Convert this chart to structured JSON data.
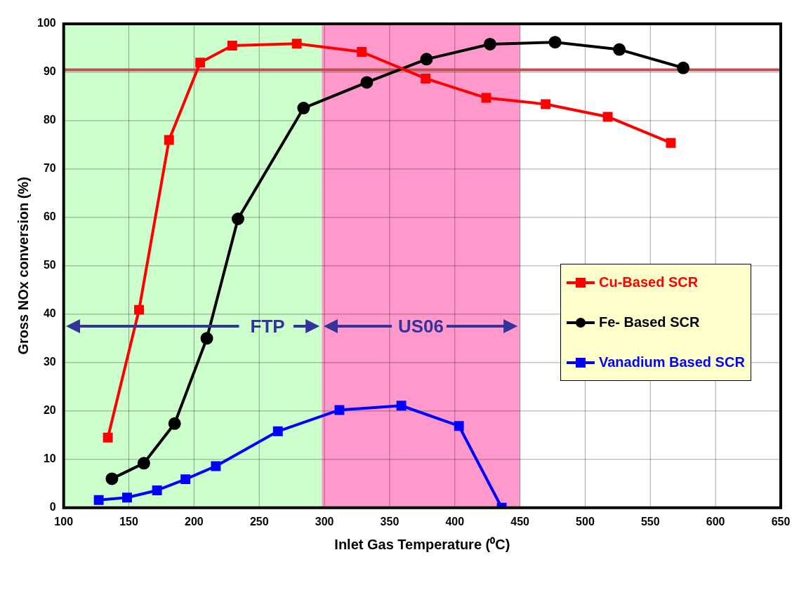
{
  "chart_data": {
    "type": "line",
    "xlabel": "Inlet Gas Temperature (⁰C)",
    "ylabel": "Gross NOx conversion (%)",
    "xlim": [
      100,
      650
    ],
    "xticks": [
      100,
      150,
      200,
      250,
      300,
      350,
      400,
      450,
      500,
      550,
      600,
      650
    ],
    "ylim": [
      0,
      100
    ],
    "yticks": [
      0,
      10,
      20,
      30,
      40,
      50,
      60,
      70,
      80,
      90,
      100
    ],
    "grid": true,
    "legend": "right",
    "line_style": "solid",
    "series": [
      {
        "name": "Cu-Based SCR",
        "color": "#ff0000",
        "marker": "square",
        "x": [
          133.9,
          157.8,
          180.8,
          204.7,
          229.3,
          278.8,
          328.6,
          377.6,
          424.1,
          469.7,
          517.3,
          565.7
        ],
        "values": [
          14.5,
          40.9,
          76,
          92,
          95.5,
          95.9,
          94.2,
          88.7,
          84.7,
          83.4,
          80.8,
          75.4
        ]
      },
      {
        "name": "Fe- Based SCR",
        "color": "#000000",
        "marker": "circle",
        "x": [
          137,
          161.5,
          185.1,
          209.8,
          233.7,
          284,
          332.5,
          378.3,
          427,
          476.9,
          526.2,
          575.2
        ],
        "values": [
          6,
          9.2,
          17.4,
          35,
          59.7,
          82.6,
          87.9,
          92.7,
          95.8,
          96.2,
          94.7,
          90.9
        ]
      },
      {
        "name": "Vanadium Based SCR",
        "color": "#0000ff",
        "marker": "square",
        "x": [
          126.9,
          148.6,
          171.6,
          193.4,
          216.7,
          264.3,
          311.5,
          359,
          403.2,
          436
        ],
        "values": [
          1.6,
          2.1,
          3.6,
          5.9,
          8.6,
          15.8,
          20.2,
          21.1,
          16.9,
          0
        ]
      }
    ],
    "ref_lines": [
      {
        "axis": "y",
        "value": 90.5,
        "color": "#c0504d"
      }
    ],
    "bands": [
      {
        "axis": "x",
        "from": 100,
        "to": 298,
        "color": "#ccffcc"
      },
      {
        "axis": "x",
        "from": 298,
        "to": 450,
        "color": "#ff99cc"
      }
    ],
    "annotations": [
      "FTP",
      "US06"
    ]
  }
}
